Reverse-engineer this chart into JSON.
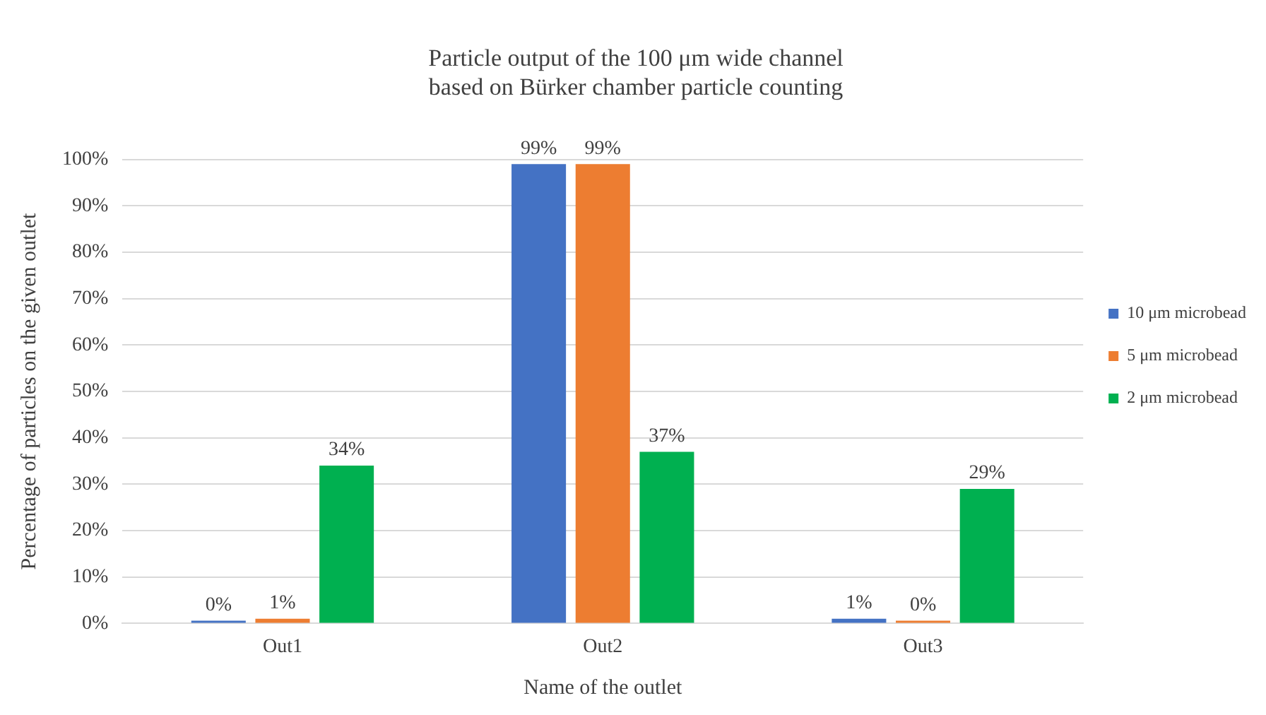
{
  "chart_data": {
    "type": "bar",
    "title": "Particle output of the 100 μm wide channel\nbased on Bürker chamber particle counting",
    "xlabel": "Name of the outlet",
    "ylabel": "Percentage of particles on the given outlet",
    "categories": [
      "Out1",
      "Out2",
      "Out3"
    ],
    "series": [
      {
        "name": "10 μm microbead",
        "color": "#4472c4",
        "values": [
          0,
          99,
          1
        ],
        "value_labels": [
          "0%",
          "99%",
          "1%"
        ]
      },
      {
        "name": "5 μm microbead",
        "color": "#ed7d31",
        "values": [
          1,
          99,
          0
        ],
        "value_labels": [
          "1%",
          "99%",
          "0%"
        ]
      },
      {
        "name": "2 μm microbead",
        "color": "#00b050",
        "values": [
          34,
          37,
          29
        ],
        "value_labels": [
          "34%",
          "37%",
          "29%"
        ]
      }
    ],
    "ylim": [
      0,
      100
    ],
    "yticks": [
      {
        "value": 0,
        "label": "0%"
      },
      {
        "value": 10,
        "label": "10%"
      },
      {
        "value": 20,
        "label": "20%"
      },
      {
        "value": 30,
        "label": "30%"
      },
      {
        "value": 40,
        "label": "40%"
      },
      {
        "value": 50,
        "label": "50%"
      },
      {
        "value": 60,
        "label": "60%"
      },
      {
        "value": 70,
        "label": "70%"
      },
      {
        "value": 80,
        "label": "80%"
      },
      {
        "value": 90,
        "label": "90%"
      },
      {
        "value": 100,
        "label": "100%"
      }
    ],
    "grid": "y",
    "legend": "right"
  }
}
